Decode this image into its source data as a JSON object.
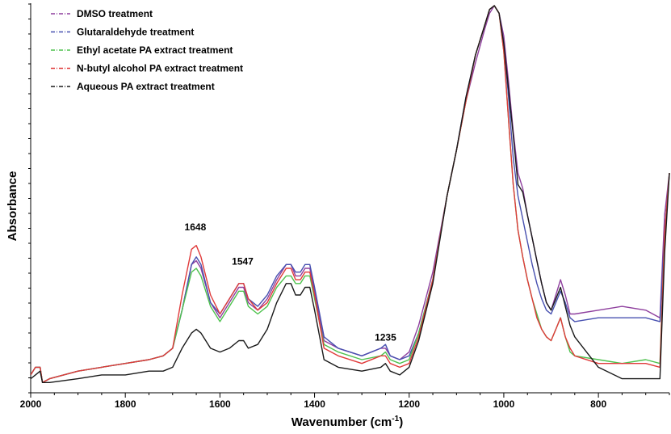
{
  "chart_data": {
    "type": "line",
    "title": "",
    "xlabel": "Wavenumber (cm",
    "xlabel_sup": "-1",
    "xlabel_close": ")",
    "ylabel": "Absorbance",
    "xlim": [
      2000,
      650
    ],
    "x_reversed": true,
    "ylim": [
      0,
      1
    ],
    "y_ticks_labeled": false,
    "grid": false,
    "legend_position": "top-left",
    "x_ticks": [
      2000,
      1800,
      1600,
      1400,
      1200,
      1000,
      800
    ],
    "x_tick_labels": [
      "2000",
      "1800",
      "1600",
      "1400",
      "1200",
      "1000",
      "800"
    ],
    "annotations": [
      {
        "text": "1648",
        "x": 1652,
        "y": 0.41
      },
      {
        "text": "1547",
        "x": 1552,
        "y": 0.32
      },
      {
        "text": "1235",
        "x": 1250,
        "y": 0.12
      }
    ],
    "series": [
      {
        "name": "DMSO treatment",
        "color": "#8e3f9e",
        "x": [
          2000,
          1990,
          1980,
          1975,
          1960,
          1900,
          1850,
          1800,
          1750,
          1720,
          1700,
          1680,
          1660,
          1650,
          1640,
          1620,
          1600,
          1580,
          1560,
          1550,
          1540,
          1520,
          1500,
          1480,
          1460,
          1450,
          1440,
          1430,
          1420,
          1410,
          1400,
          1380,
          1350,
          1300,
          1260,
          1250,
          1240,
          1220,
          1200,
          1180,
          1150,
          1120,
          1100,
          1080,
          1060,
          1040,
          1030,
          1020,
          1010,
          1000,
          990,
          980,
          970,
          960,
          950,
          940,
          930,
          920,
          910,
          900,
          890,
          880,
          870,
          860,
          850,
          800,
          750,
          700,
          670,
          660,
          650
        ],
        "y": [
          0.03,
          0.05,
          0.05,
          0.01,
          0.02,
          0.04,
          0.05,
          0.06,
          0.07,
          0.08,
          0.1,
          0.2,
          0.32,
          0.33,
          0.31,
          0.22,
          0.18,
          0.22,
          0.26,
          0.26,
          0.22,
          0.2,
          0.23,
          0.28,
          0.32,
          0.32,
          0.29,
          0.29,
          0.31,
          0.31,
          0.25,
          0.12,
          0.1,
          0.08,
          0.1,
          0.1,
          0.08,
          0.07,
          0.09,
          0.16,
          0.3,
          0.5,
          0.62,
          0.75,
          0.85,
          0.94,
          0.98,
          1.0,
          0.98,
          0.92,
          0.8,
          0.67,
          0.56,
          0.52,
          0.45,
          0.39,
          0.33,
          0.27,
          0.22,
          0.2,
          0.24,
          0.28,
          0.24,
          0.19,
          0.19,
          0.2,
          0.21,
          0.2,
          0.18,
          0.45,
          0.56
        ]
      },
      {
        "name": "Glutaraldehyde treatment",
        "color": "#4750b0",
        "x": [
          2000,
          1990,
          1980,
          1975,
          1960,
          1900,
          1850,
          1800,
          1750,
          1720,
          1700,
          1680,
          1660,
          1650,
          1640,
          1620,
          1600,
          1580,
          1560,
          1550,
          1540,
          1520,
          1500,
          1480,
          1460,
          1450,
          1440,
          1430,
          1420,
          1410,
          1400,
          1380,
          1350,
          1300,
          1260,
          1250,
          1240,
          1220,
          1200,
          1180,
          1150,
          1120,
          1100,
          1080,
          1060,
          1040,
          1030,
          1020,
          1010,
          1000,
          990,
          980,
          970,
          960,
          950,
          940,
          930,
          920,
          910,
          900,
          890,
          880,
          870,
          860,
          850,
          800,
          750,
          700,
          670,
          660,
          650
        ],
        "y": [
          0.03,
          0.05,
          0.05,
          0.01,
          0.02,
          0.04,
          0.05,
          0.06,
          0.07,
          0.08,
          0.1,
          0.2,
          0.32,
          0.34,
          0.32,
          0.22,
          0.19,
          0.23,
          0.27,
          0.27,
          0.23,
          0.21,
          0.24,
          0.29,
          0.32,
          0.32,
          0.3,
          0.3,
          0.32,
          0.32,
          0.26,
          0.13,
          0.1,
          0.08,
          0.1,
          0.11,
          0.08,
          0.07,
          0.08,
          0.14,
          0.28,
          0.5,
          0.62,
          0.76,
          0.87,
          0.95,
          0.99,
          1.0,
          0.98,
          0.9,
          0.76,
          0.6,
          0.5,
          0.44,
          0.38,
          0.32,
          0.27,
          0.23,
          0.2,
          0.19,
          0.22,
          0.25,
          0.22,
          0.18,
          0.17,
          0.18,
          0.18,
          0.18,
          0.17,
          0.4,
          0.56
        ]
      },
      {
        "name": "Ethyl acetate PA extract treatment",
        "color": "#4ec24e",
        "x": [
          2000,
          1990,
          1980,
          1975,
          1960,
          1900,
          1850,
          1800,
          1750,
          1720,
          1700,
          1680,
          1660,
          1650,
          1640,
          1620,
          1600,
          1580,
          1560,
          1550,
          1540,
          1520,
          1500,
          1480,
          1460,
          1450,
          1440,
          1430,
          1420,
          1410,
          1400,
          1380,
          1350,
          1300,
          1260,
          1250,
          1240,
          1220,
          1200,
          1180,
          1150,
          1120,
          1100,
          1080,
          1060,
          1040,
          1030,
          1020,
          1010,
          1000,
          990,
          980,
          970,
          960,
          950,
          940,
          930,
          920,
          910,
          900,
          890,
          880,
          870,
          860,
          850,
          800,
          750,
          700,
          670,
          660,
          650
        ],
        "y": [
          0.03,
          0.05,
          0.05,
          0.01,
          0.02,
          0.04,
          0.05,
          0.06,
          0.07,
          0.08,
          0.1,
          0.2,
          0.3,
          0.31,
          0.29,
          0.21,
          0.17,
          0.21,
          0.25,
          0.25,
          0.21,
          0.19,
          0.21,
          0.26,
          0.29,
          0.29,
          0.27,
          0.27,
          0.29,
          0.29,
          0.23,
          0.11,
          0.09,
          0.07,
          0.08,
          0.09,
          0.07,
          0.06,
          0.07,
          0.14,
          0.28,
          0.5,
          0.62,
          0.75,
          0.87,
          0.95,
          0.99,
          1.0,
          0.98,
          0.88,
          0.7,
          0.53,
          0.41,
          0.34,
          0.28,
          0.23,
          0.19,
          0.15,
          0.13,
          0.12,
          0.15,
          0.18,
          0.13,
          0.09,
          0.08,
          0.07,
          0.06,
          0.07,
          0.06,
          0.4,
          0.56
        ]
      },
      {
        "name": "N-butyl alcohol PA extract treatment",
        "color": "#e03a3a",
        "x": [
          2000,
          1990,
          1980,
          1975,
          1960,
          1900,
          1850,
          1800,
          1750,
          1720,
          1700,
          1680,
          1660,
          1650,
          1640,
          1620,
          1600,
          1580,
          1560,
          1550,
          1540,
          1520,
          1500,
          1480,
          1460,
          1450,
          1440,
          1430,
          1420,
          1410,
          1400,
          1380,
          1350,
          1300,
          1260,
          1250,
          1240,
          1220,
          1200,
          1180,
          1150,
          1120,
          1100,
          1080,
          1060,
          1040,
          1030,
          1020,
          1010,
          1000,
          990,
          980,
          970,
          960,
          950,
          940,
          930,
          920,
          910,
          900,
          890,
          880,
          870,
          860,
          850,
          800,
          750,
          700,
          670,
          660,
          650
        ],
        "y": [
          0.03,
          0.05,
          0.05,
          0.01,
          0.02,
          0.04,
          0.05,
          0.06,
          0.07,
          0.08,
          0.1,
          0.24,
          0.36,
          0.37,
          0.34,
          0.24,
          0.19,
          0.23,
          0.27,
          0.27,
          0.23,
          0.2,
          0.22,
          0.27,
          0.31,
          0.31,
          0.28,
          0.28,
          0.3,
          0.3,
          0.24,
          0.1,
          0.08,
          0.06,
          0.08,
          0.08,
          0.06,
          0.05,
          0.06,
          0.13,
          0.28,
          0.5,
          0.62,
          0.75,
          0.87,
          0.95,
          0.99,
          1.0,
          0.98,
          0.88,
          0.7,
          0.53,
          0.41,
          0.34,
          0.28,
          0.23,
          0.18,
          0.15,
          0.13,
          0.12,
          0.15,
          0.18,
          0.13,
          0.1,
          0.08,
          0.06,
          0.06,
          0.06,
          0.05,
          0.4,
          0.56
        ]
      },
      {
        "name": "Aqueous PA extract treatment",
        "color": "#1a1a1a",
        "x": [
          2000,
          1990,
          1980,
          1975,
          1960,
          1900,
          1850,
          1800,
          1750,
          1720,
          1700,
          1680,
          1660,
          1650,
          1640,
          1620,
          1600,
          1580,
          1560,
          1550,
          1540,
          1520,
          1500,
          1480,
          1460,
          1450,
          1440,
          1430,
          1420,
          1410,
          1400,
          1380,
          1350,
          1300,
          1260,
          1250,
          1240,
          1220,
          1200,
          1180,
          1150,
          1120,
          1100,
          1080,
          1060,
          1040,
          1030,
          1020,
          1010,
          1000,
          990,
          980,
          970,
          960,
          950,
          940,
          930,
          920,
          910,
          900,
          890,
          880,
          870,
          860,
          850,
          800,
          750,
          700,
          670,
          660,
          650
        ],
        "y": [
          0.02,
          0.03,
          0.04,
          0.01,
          0.01,
          0.02,
          0.03,
          0.03,
          0.04,
          0.04,
          0.05,
          0.1,
          0.14,
          0.15,
          0.14,
          0.1,
          0.09,
          0.1,
          0.12,
          0.12,
          0.1,
          0.11,
          0.15,
          0.22,
          0.27,
          0.27,
          0.24,
          0.24,
          0.26,
          0.26,
          0.2,
          0.07,
          0.05,
          0.04,
          0.05,
          0.06,
          0.04,
          0.03,
          0.05,
          0.12,
          0.27,
          0.5,
          0.62,
          0.76,
          0.87,
          0.95,
          0.99,
          1.0,
          0.98,
          0.9,
          0.78,
          0.66,
          0.53,
          0.51,
          0.45,
          0.39,
          0.33,
          0.27,
          0.22,
          0.2,
          0.23,
          0.26,
          0.21,
          0.16,
          0.13,
          0.05,
          0.02,
          0.02,
          0.02,
          0.35,
          0.56
        ]
      }
    ]
  }
}
